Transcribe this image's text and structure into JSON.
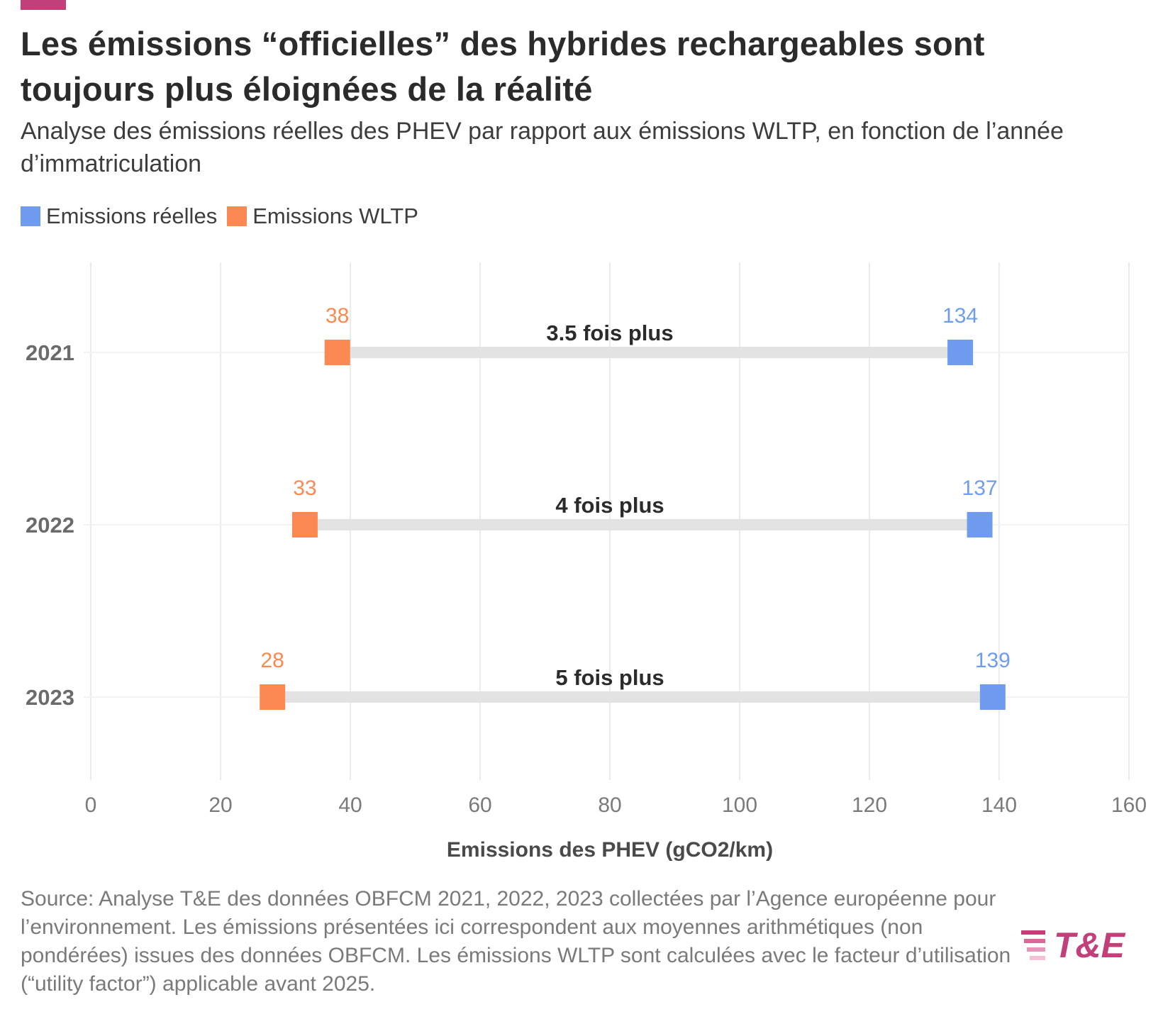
{
  "header": {
    "title": "Les émissions “officielles” des hybrides rechargeables sont toujours plus éloignées de la réalité",
    "subtitle": "Analyse des émissions réelles des PHEV par rapport aux émissions WLTP, en fonction de l’année d’immatriculation"
  },
  "legend": {
    "real_label": "Emissions réelles",
    "wltp_label": "Emissions WLTP"
  },
  "colors": {
    "accent": "#c2407a",
    "real": "#6f9cef",
    "wltp": "#fa8a52",
    "connector": "#e3e3e3",
    "grid": "#ebebeb"
  },
  "chart_data": {
    "type": "dumbbell",
    "categories": [
      "2021",
      "2022",
      "2023"
    ],
    "series": [
      {
        "name": "Emissions WLTP",
        "values": [
          38,
          33,
          28
        ]
      },
      {
        "name": "Emissions réelles",
        "values": [
          134,
          137,
          139
        ]
      }
    ],
    "annotations": [
      "3.5 fois plus",
      "4 fois plus",
      "5 fois plus"
    ],
    "xlabel": "Emissions des PHEV (gCO2/km)",
    "xlim": [
      0,
      160
    ],
    "xticks": [
      0,
      20,
      40,
      60,
      80,
      100,
      120,
      140,
      160
    ],
    "grid": true
  },
  "footer": {
    "source": "Source: Analyse T&E des données OBFCM 2021, 2022, 2023 collectées par l’Agence européenne pour l’environnement. Les émissions présentées ici correspondent aux moyennes arithmétiques (non pondérées) issues des données OBFCM. Les émissions WLTP sont calculées avec le facteur d’utilisation (“utility factor”) applicable avant 2025."
  },
  "logo": {
    "text": "T&E"
  }
}
